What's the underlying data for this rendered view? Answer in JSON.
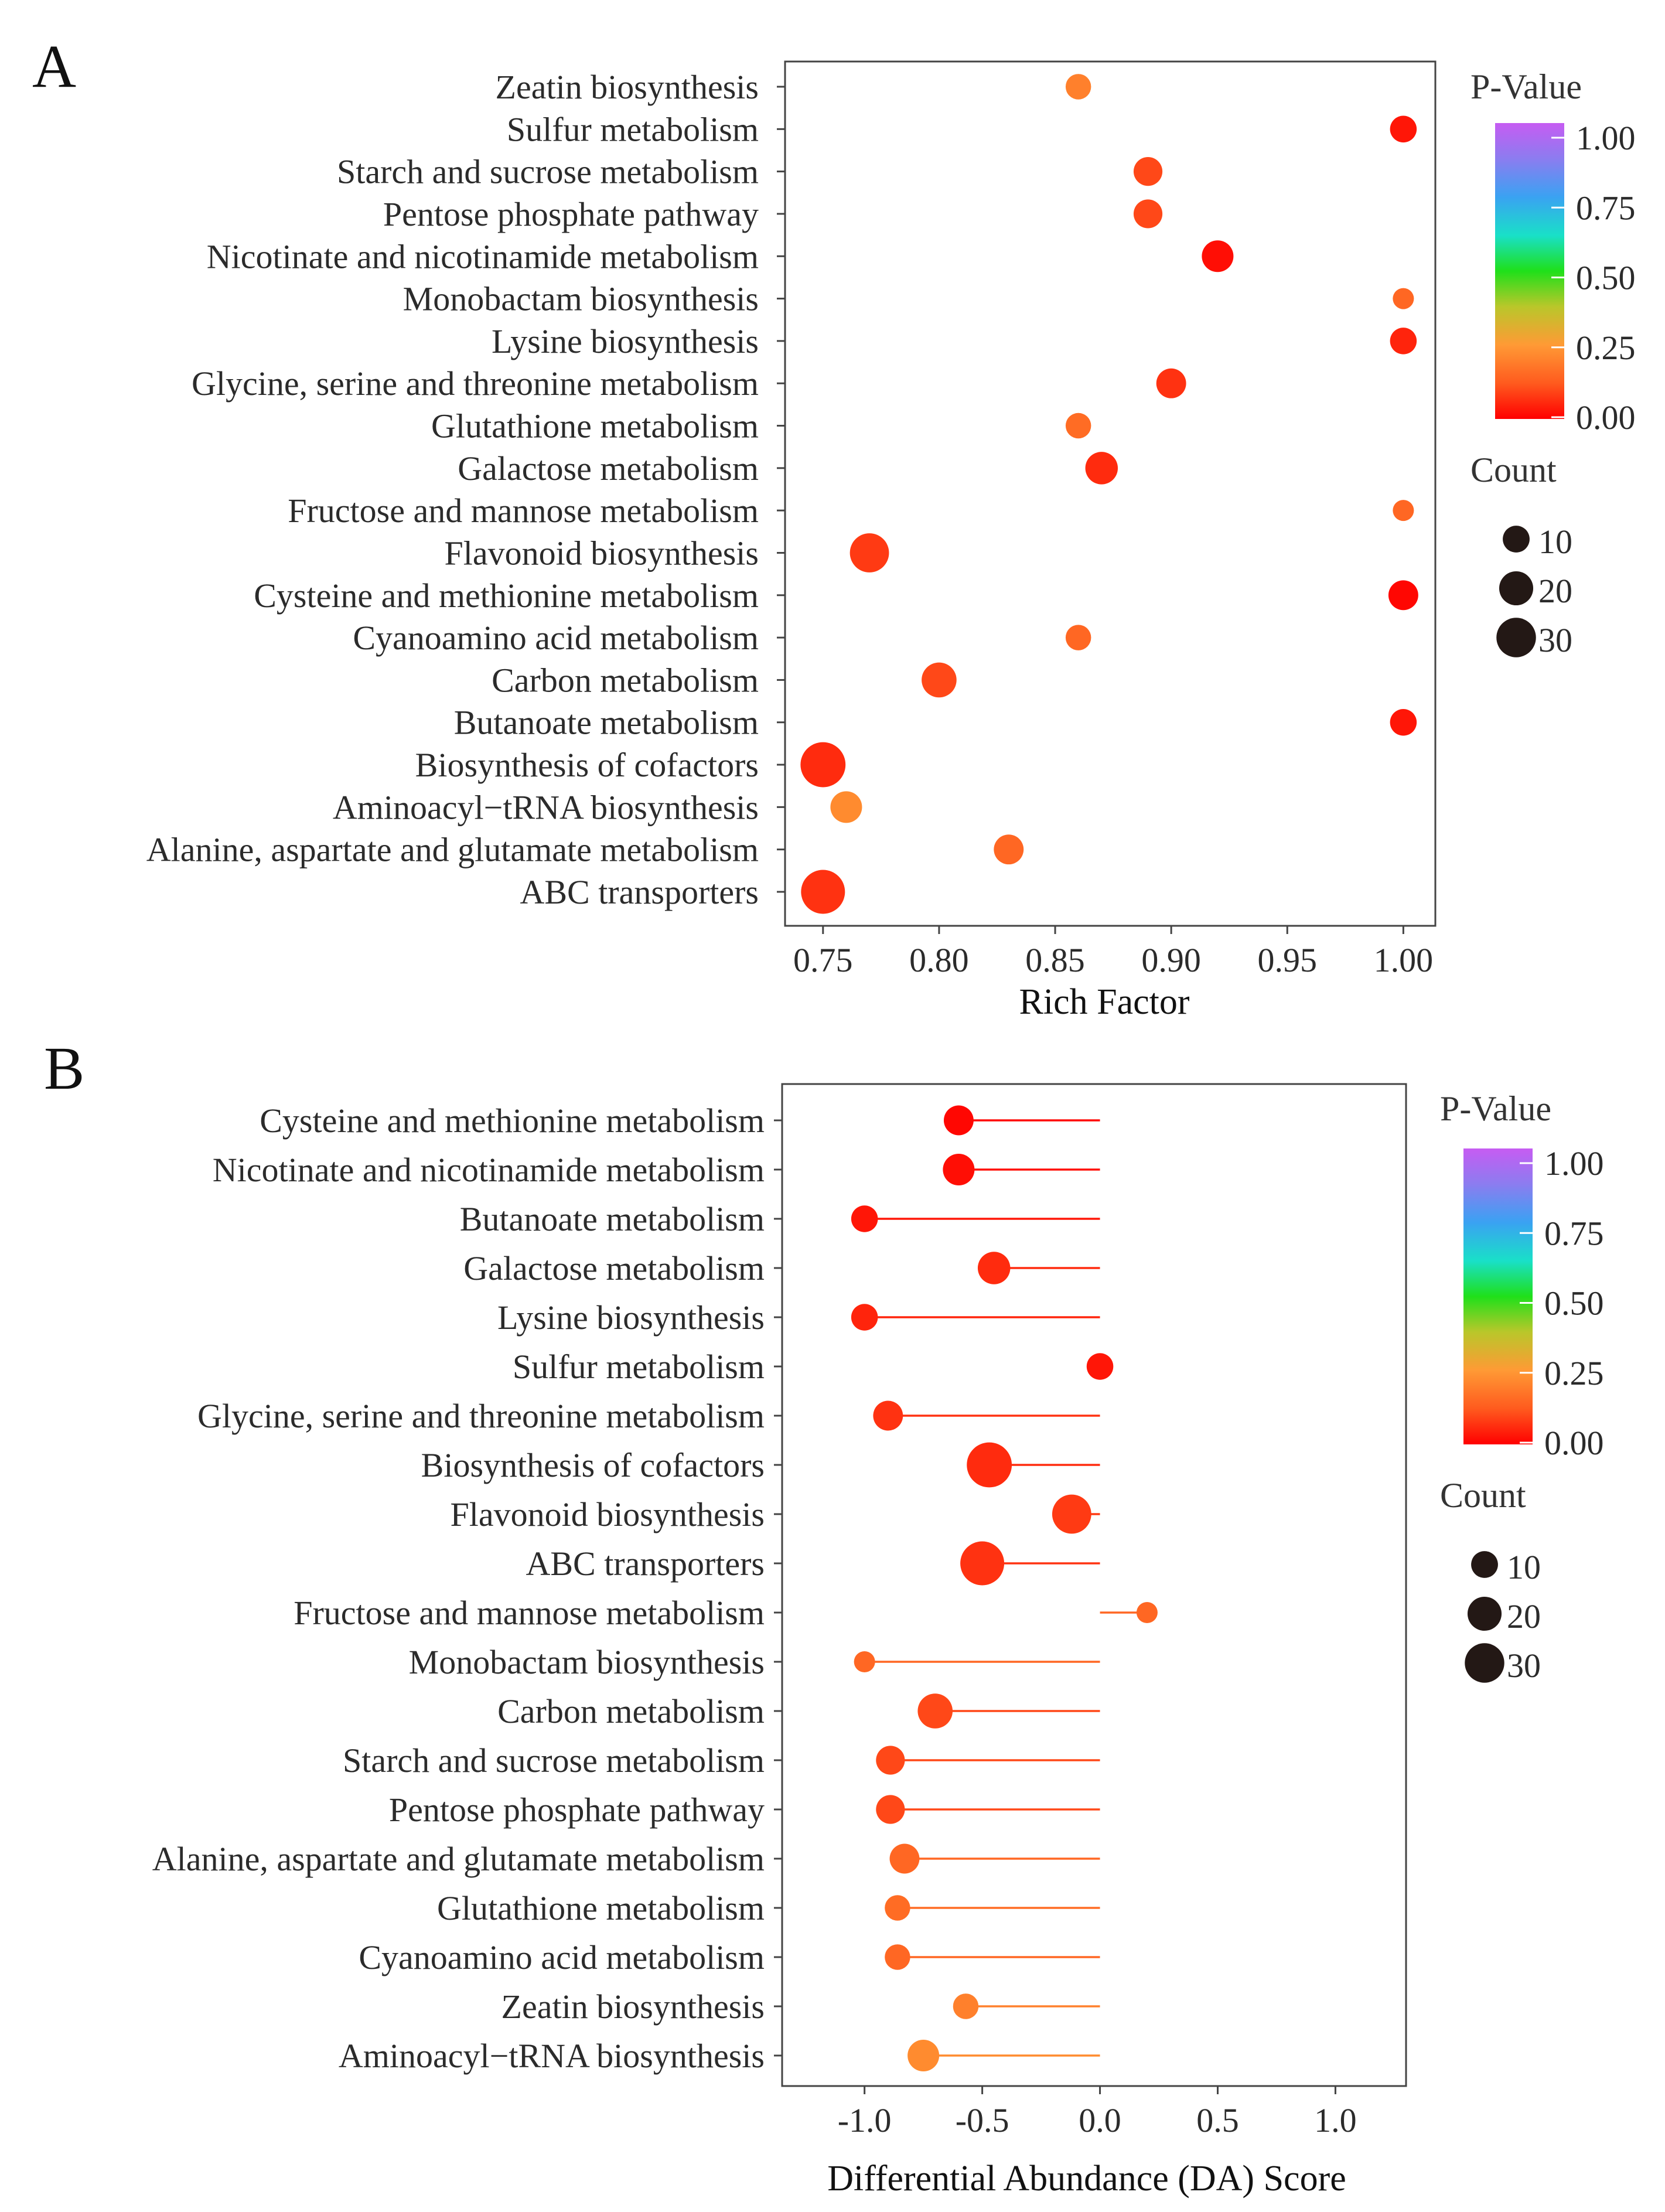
{
  "chart_data": [
    {
      "panel": "A",
      "type": "scatter",
      "title": "",
      "xlabel": "Rich Factor",
      "ylabel": "",
      "xlim": [
        0.745,
        1.01
      ],
      "xticks": [
        "0.75",
        "0.80",
        "0.85",
        "0.90",
        "0.95",
        "1.00"
      ],
      "xtick_values": [
        0.75,
        0.8,
        0.85,
        0.9,
        0.95,
        1.0
      ],
      "grid": false,
      "legend": {
        "color_title": "P-Value",
        "color_ticks": [
          "1.00",
          "0.75",
          "0.50",
          "0.25",
          "0.00"
        ],
        "size_title": "Count",
        "size_labels": [
          "10",
          "20",
          "30"
        ],
        "placement": "right"
      },
      "categories": [
        "Zeatin biosynthesis",
        "Sulfur metabolism",
        "Starch and sucrose metabolism",
        "Pentose phosphate pathway",
        "Nicotinate and nicotinamide metabolism",
        "Monobactam biosynthesis",
        "Lysine biosynthesis",
        "Glycine, serine and threonine metabolism",
        "Glutathione metabolism",
        "Galactose metabolism",
        "Fructose and mannose metabolism",
        "Flavonoid biosynthesis",
        "Cysteine and methionine metabolism",
        "Cyanoamino acid metabolism",
        "Carbon metabolism",
        "Butanoate metabolism",
        "Biosynthesis of cofactors",
        "Aminoacyl−tRNA biosynthesis",
        "Alanine, aspartate and glutamate metabolism",
        "ABC transporters"
      ],
      "x": [
        0.86,
        1.0,
        0.89,
        0.89,
        0.92,
        1.0,
        1.0,
        0.9,
        0.86,
        0.87,
        1.0,
        0.77,
        1.0,
        0.86,
        0.8,
        1.0,
        0.75,
        0.76,
        0.83,
        0.75
      ],
      "count": [
        6,
        7,
        9,
        9,
        12,
        3,
        7,
        10,
        6,
        13,
        3,
        22,
        10,
        6,
        16,
        7,
        32,
        12,
        10,
        30
      ],
      "p_value": [
        0.2,
        0.03,
        0.1,
        0.1,
        0.02,
        0.15,
        0.05,
        0.07,
        0.16,
        0.06,
        0.15,
        0.08,
        0.01,
        0.15,
        0.1,
        0.03,
        0.06,
        0.22,
        0.15,
        0.07
      ]
    },
    {
      "panel": "B",
      "type": "scatter",
      "subtype": "lollipop",
      "title": "",
      "xlabel": "Differential Abundance (DA) Score",
      "ylabel": "",
      "xlim": [
        -1.35,
        1.3
      ],
      "xticks": [
        "-1.0",
        "-0.5",
        "0.0",
        "0.5",
        "1.0"
      ],
      "xtick_values": [
        -1.0,
        -0.5,
        0.0,
        0.5,
        1.0
      ],
      "grid": false,
      "legend": {
        "color_title": "P-Value",
        "color_ticks": [
          "1.00",
          "0.75",
          "0.50",
          "0.25",
          "0.00"
        ],
        "size_title": "Count",
        "size_labels": [
          "10",
          "20",
          "30"
        ],
        "placement": "right"
      },
      "categories": [
        "Cysteine and methionine metabolism",
        "Nicotinate and nicotinamide metabolism",
        "Butanoate metabolism",
        "Galactose metabolism",
        "Lysine biosynthesis",
        "Sulfur metabolism",
        "Glycine, serine and threonine metabolism",
        "Biosynthesis of cofactors",
        "Flavonoid biosynthesis",
        "ABC transporters",
        "Fructose and mannose metabolism",
        "Monobactam biosynthesis",
        "Carbon metabolism",
        "Starch and sucrose metabolism",
        "Pentose phosphate pathway",
        "Alanine, aspartate and glutamate metabolism",
        "Glutathione metabolism",
        "Cyanoamino acid metabolism",
        "Zeatin biosynthesis",
        "Aminoacyl−tRNA biosynthesis"
      ],
      "x": [
        -0.6,
        -0.6,
        -1.0,
        -0.45,
        -1.0,
        0.0,
        -0.9,
        -0.47,
        -0.12,
        -0.5,
        0.2,
        -1.0,
        -0.7,
        -0.89,
        -0.89,
        -0.83,
        -0.86,
        -0.86,
        -0.57,
        -0.75
      ],
      "count": [
        10,
        12,
        7,
        13,
        7,
        7,
        10,
        32,
        22,
        30,
        3,
        3,
        16,
        9,
        9,
        10,
        6,
        6,
        6,
        12
      ],
      "p_value": [
        0.01,
        0.02,
        0.03,
        0.06,
        0.05,
        0.03,
        0.07,
        0.06,
        0.08,
        0.07,
        0.15,
        0.15,
        0.1,
        0.1,
        0.1,
        0.15,
        0.16,
        0.15,
        0.2,
        0.22
      ]
    }
  ],
  "panel_labels": [
    "A",
    "B"
  ],
  "colors": {
    "gradient": [
      "#ff0000",
      "#ff5a1e",
      "#ff9a35",
      "#b9c72a",
      "#1fe01a",
      "#19e0c8",
      "#3aa2f2",
      "#8c7cf0",
      "#c65cf2"
    ],
    "dot_size_legend": "#231815",
    "frame": "#444444",
    "text": "#2b2b2b"
  }
}
